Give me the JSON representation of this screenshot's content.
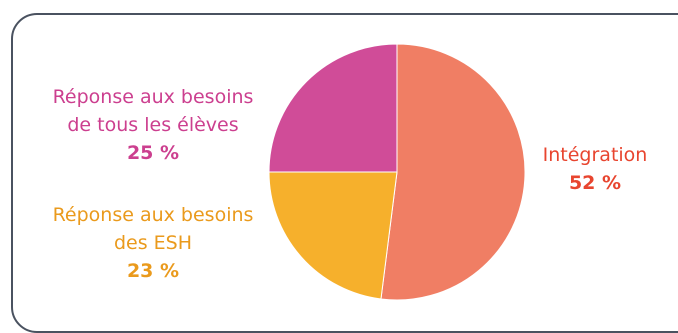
{
  "chart_data": {
    "type": "pie",
    "title": "",
    "slices": [
      {
        "label_lines": [
          "Intégration"
        ],
        "value": 52,
        "value_label": "52 %",
        "color": "#f07e64",
        "label_color": "#e8452f"
      },
      {
        "label_lines": [
          "Réponse aux besoins",
          "des ESH"
        ],
        "value": 23,
        "value_label": "23 %",
        "color": "#f6b02c",
        "label_color": "#ea9a1c"
      },
      {
        "label_lines": [
          "Réponse aux besoins",
          "de tous les élèves"
        ],
        "value": 25,
        "value_label": "25 %",
        "color": "#d04c98",
        "label_color": "#cc3f8f"
      }
    ]
  }
}
